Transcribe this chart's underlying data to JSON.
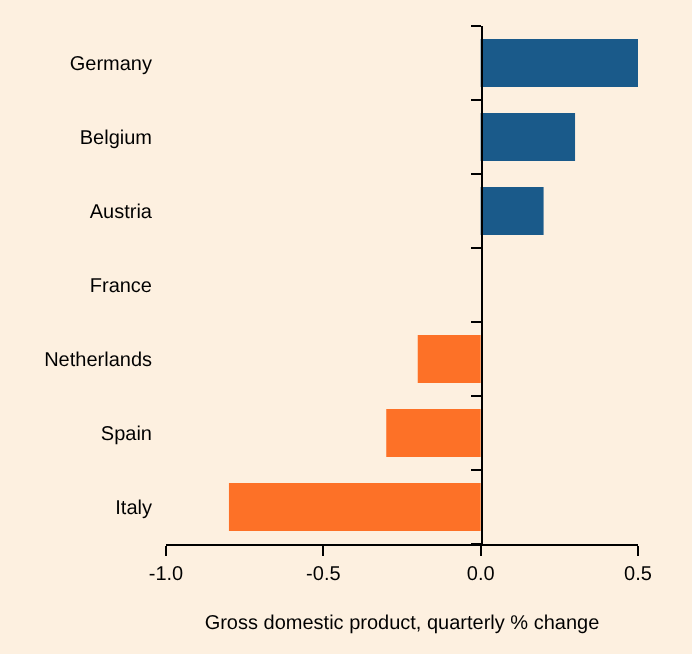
{
  "chart_data": {
    "type": "bar",
    "orientation": "horizontal",
    "xlabel": "Gross domestic product, quarterly % change",
    "categories": [
      "Germany",
      "Belgium",
      "Austria",
      "France",
      "Netherlands",
      "Spain",
      "Italy"
    ],
    "values": [
      0.5,
      0.3,
      0.2,
      0,
      -0.2,
      -0.3,
      -0.8
    ],
    "colors": [
      "#1a5a8a",
      "#1a5a8a",
      "#1a5a8a",
      "#1a5a8a",
      "#fd7127",
      "#fd7127",
      "#fd7127"
    ],
    "xlim": [
      -1,
      0.5
    ],
    "xticks": [
      {
        "value": -1,
        "label": "-1.0"
      },
      {
        "value": -0.5,
        "label": "-0.5"
      },
      {
        "value": 0,
        "label": "0.0"
      },
      {
        "value": 0.5,
        "label": "0.5"
      }
    ],
    "legend": false
  }
}
